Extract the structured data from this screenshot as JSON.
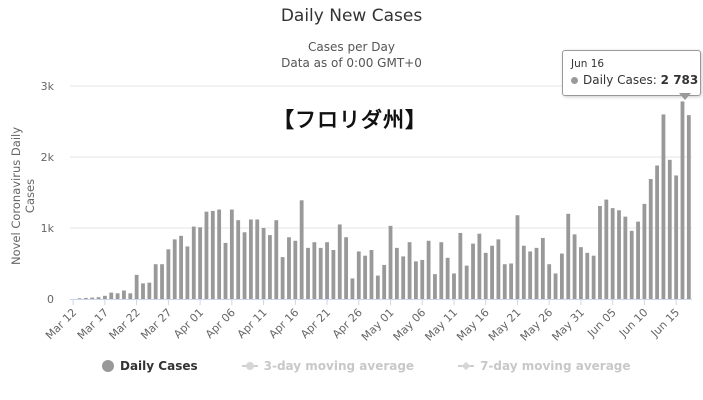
{
  "chart_data": {
    "type": "bar",
    "title": "Daily New Cases",
    "subtitle_line1": "Cases per Day",
    "subtitle_line2": "Data as of 0:00 GMT+0",
    "ylabel": "Novel Coronavirus Daily Cases",
    "xlabel": "",
    "overlay_label": "【フロリダ州】",
    "ylim": [
      0,
      3000
    ],
    "y_ticks": [
      {
        "value": 0,
        "label": "0"
      },
      {
        "value": 1000,
        "label": "1k"
      },
      {
        "value": 2000,
        "label": "2k"
      },
      {
        "value": 3000,
        "label": "3k"
      }
    ],
    "grid": true,
    "legend_position": "bottom-center",
    "x_tick_labels": [
      {
        "index": 0,
        "label": "Mar 12"
      },
      {
        "index": 5,
        "label": "Mar 17"
      },
      {
        "index": 10,
        "label": "Mar 22"
      },
      {
        "index": 15,
        "label": "Mar 27"
      },
      {
        "index": 20,
        "label": "Apr 01"
      },
      {
        "index": 25,
        "label": "Apr 06"
      },
      {
        "index": 30,
        "label": "Apr 11"
      },
      {
        "index": 35,
        "label": "Apr 16"
      },
      {
        "index": 40,
        "label": "Apr 21"
      },
      {
        "index": 45,
        "label": "Apr 26"
      },
      {
        "index": 50,
        "label": "May 01"
      },
      {
        "index": 55,
        "label": "May 06"
      },
      {
        "index": 60,
        "label": "May 11"
      },
      {
        "index": 65,
        "label": "May 16"
      },
      {
        "index": 70,
        "label": "May 21"
      },
      {
        "index": 75,
        "label": "May 26"
      },
      {
        "index": 80,
        "label": "May 31"
      },
      {
        "index": 85,
        "label": "Jun 05"
      },
      {
        "index": 90,
        "label": "Jun 10"
      },
      {
        "index": 95,
        "label": "Jun 15"
      }
    ],
    "series": [
      {
        "name": "Daily Cases",
        "color": "#999999",
        "values": [
          0,
          10,
          15,
          20,
          25,
          45,
          90,
          80,
          120,
          80,
          340,
          220,
          230,
          490,
          490,
          700,
          840,
          890,
          740,
          1020,
          1010,
          1230,
          1240,
          1260,
          790,
          1260,
          1110,
          940,
          1120,
          1120,
          1000,
          900,
          1110,
          590,
          870,
          820,
          1390,
          720,
          800,
          720,
          800,
          690,
          1050,
          870,
          290,
          670,
          610,
          690,
          330,
          480,
          1030,
          720,
          600,
          800,
          530,
          550,
          820,
          350,
          800,
          580,
          360,
          930,
          470,
          780,
          920,
          650,
          750,
          840,
          490,
          500,
          1180,
          750,
          670,
          720,
          860,
          490,
          360,
          640,
          1200,
          910,
          730,
          650,
          610,
          1310,
          1400,
          1280,
          1250,
          1160,
          960,
          1090,
          1340,
          1690,
          1880,
          2600,
          1960,
          1740,
          2783,
          2590
        ]
      },
      {
        "name": "3-day moving average",
        "visible": false
      },
      {
        "name": "7-day moving average",
        "visible": false
      }
    ],
    "highlight_index": 96
  },
  "legend": [
    {
      "label": "Daily Cases",
      "symbol": "circle",
      "active": true
    },
    {
      "label": "3-day moving average",
      "symbol": "line-circle",
      "active": false
    },
    {
      "label": "7-day moving average",
      "symbol": "line-diamond",
      "active": false
    }
  ],
  "tooltip": {
    "date": "Jun 16",
    "series_label": "Daily Cases:",
    "value_text": "2 783"
  }
}
